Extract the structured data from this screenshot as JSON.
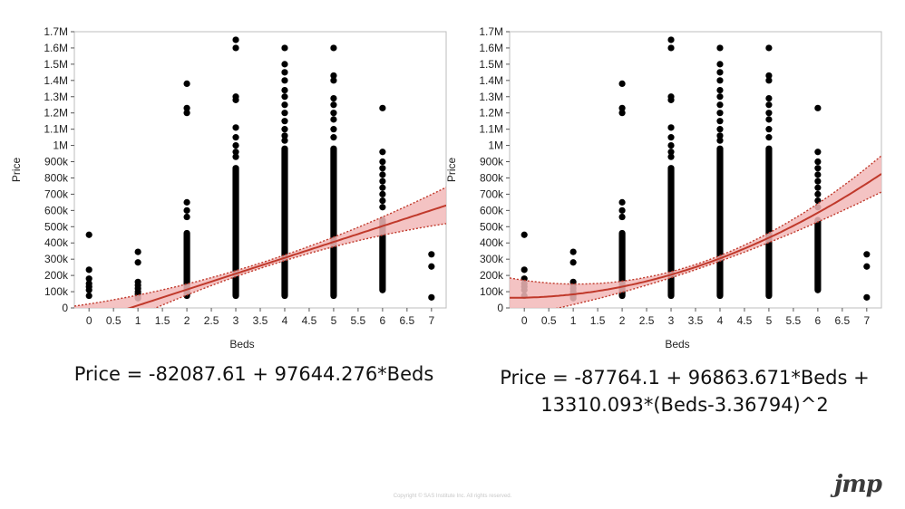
{
  "equations": {
    "left": "Price = -82087.61 + 97644.276*Beds",
    "right_line1": "Price = -87764.1 + 96863.671*Beds +",
    "right_line2": "13310.093*(Beds-3.36794)^2"
  },
  "footer": "Copyright © SAS Institute Inc. All rights reserved.",
  "logo": "jmp",
  "colors": {
    "points": "#000000",
    "fit": "#c0392b",
    "band": "#f2b8b8",
    "frame": "#bdbdbd"
  },
  "chart_data": [
    {
      "type": "scatter",
      "fit": "linear",
      "xlabel": "Beds",
      "ylabel": "Price",
      "xlim": [
        -0.3,
        7.3
      ],
      "ylim": [
        0,
        1700000
      ],
      "x_ticks": [
        "0",
        "0.5",
        "1",
        "1.5",
        "2",
        "2.5",
        "3",
        "3.5",
        "4",
        "4.5",
        "5",
        "5.5",
        "6",
        "6.5",
        "7"
      ],
      "y_ticks": [
        "0",
        "100k",
        "200k",
        "300k",
        "400k",
        "500k",
        "600k",
        "700k",
        "800k",
        "900k",
        "1M",
        "1.1M",
        "1.2M",
        "1.3M",
        "1.4M",
        "1.5M",
        "1.6M",
        "1.7M"
      ],
      "fit_coefficients": {
        "intercept": -82087.61,
        "slope": 97644.276
      },
      "points": [
        {
          "x": 0,
          "y": [
            450000,
            235000,
            180000,
            150000,
            130000,
            110000,
            75000
          ]
        },
        {
          "x": 1,
          "y": [
            345000,
            280000,
            160000,
            140000,
            120000,
            100000,
            85000,
            70000,
            60000
          ]
        },
        {
          "x": 2,
          "range": [
            55000,
            480000
          ],
          "y": [
            1380000,
            1230000,
            1200000,
            650000,
            600000,
            560000
          ]
        },
        {
          "x": 3,
          "range": [
            55000,
            880000
          ],
          "y": [
            1650000,
            1600000,
            1300000,
            1280000,
            1110000,
            1050000,
            1000000,
            960000,
            930000
          ]
        },
        {
          "x": 4,
          "range": [
            55000,
            1000000
          ],
          "y": [
            1600000,
            1500000,
            1450000,
            1400000,
            1340000,
            1300000,
            1250000,
            1200000,
            1150000,
            1100000,
            1060000,
            1030000
          ]
        },
        {
          "x": 5,
          "range": [
            55000,
            1000000
          ],
          "y": [
            1600000,
            1430000,
            1400000,
            1290000,
            1250000,
            1200000,
            1160000,
            1100000,
            1050000
          ]
        },
        {
          "x": 6,
          "range": [
            90000,
            560000
          ],
          "y": [
            1230000,
            960000,
            900000,
            860000,
            820000,
            780000,
            740000,
            700000,
            660000,
            620000
          ]
        },
        {
          "x": 7,
          "y": [
            330000,
            255000,
            65000
          ]
        }
      ]
    },
    {
      "type": "scatter",
      "fit": "quadratic",
      "xlabel": "Beds",
      "ylabel": "Price",
      "xlim": [
        -0.3,
        7.3
      ],
      "ylim": [
        0,
        1700000
      ],
      "x_ticks": [
        "0",
        "0.5",
        "1",
        "1.5",
        "2",
        "2.5",
        "3",
        "3.5",
        "4",
        "4.5",
        "5",
        "5.5",
        "6",
        "6.5",
        "7"
      ],
      "y_ticks": [
        "0",
        "100k",
        "200k",
        "300k",
        "400k",
        "500k",
        "600k",
        "700k",
        "800k",
        "900k",
        "1M",
        "1.1M",
        "1.2M",
        "1.3M",
        "1.4M",
        "1.5M",
        "1.6M",
        "1.7M"
      ],
      "fit_coefficients": {
        "intercept": -87764.1,
        "slope": 96863.671,
        "quad": 13310.093,
        "center": 3.36794
      },
      "points": [
        {
          "x": 0,
          "y": [
            450000,
            235000,
            180000,
            150000,
            130000,
            110000,
            75000
          ]
        },
        {
          "x": 1,
          "y": [
            345000,
            280000,
            160000,
            140000,
            120000,
            100000,
            85000,
            70000,
            60000
          ]
        },
        {
          "x": 2,
          "range": [
            55000,
            480000
          ],
          "y": [
            1380000,
            1230000,
            1200000,
            650000,
            600000,
            560000
          ]
        },
        {
          "x": 3,
          "range": [
            55000,
            880000
          ],
          "y": [
            1650000,
            1600000,
            1300000,
            1280000,
            1110000,
            1050000,
            1000000,
            960000,
            930000
          ]
        },
        {
          "x": 4,
          "range": [
            55000,
            1000000
          ],
          "y": [
            1600000,
            1500000,
            1450000,
            1400000,
            1340000,
            1300000,
            1250000,
            1200000,
            1150000,
            1100000,
            1060000,
            1030000
          ]
        },
        {
          "x": 5,
          "range": [
            55000,
            1000000
          ],
          "y": [
            1600000,
            1430000,
            1400000,
            1290000,
            1250000,
            1200000,
            1160000,
            1100000,
            1050000
          ]
        },
        {
          "x": 6,
          "range": [
            90000,
            560000
          ],
          "y": [
            1230000,
            960000,
            900000,
            860000,
            820000,
            780000,
            740000,
            700000,
            660000,
            620000
          ]
        },
        {
          "x": 7,
          "y": [
            330000,
            255000,
            65000
          ]
        }
      ]
    }
  ]
}
